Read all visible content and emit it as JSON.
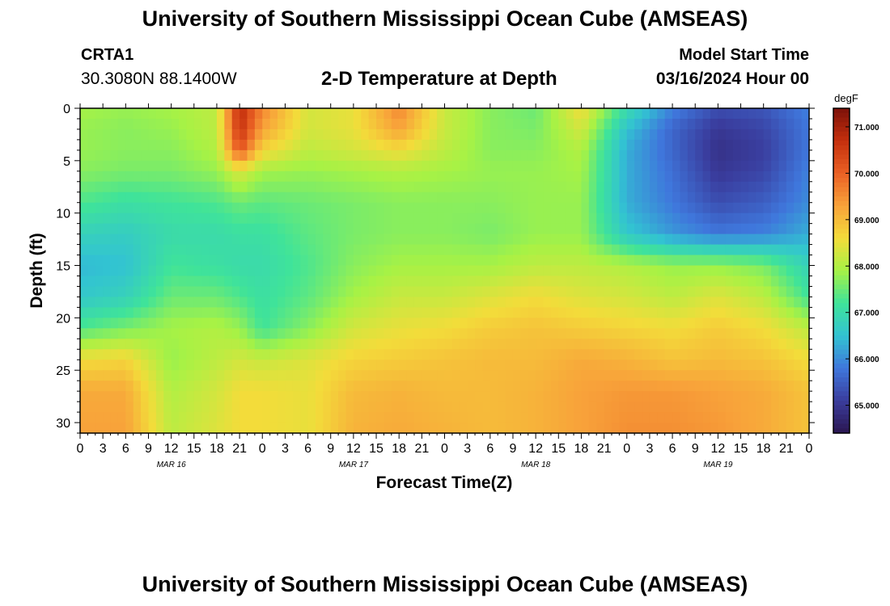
{
  "header": {
    "title": "University of Southern Mississippi Ocean Cube (AMSEAS)",
    "station_id": "CRTA1",
    "station_coords": "30.3080N  88.1400W",
    "plot_title": "2-D Temperature at Depth",
    "start_label": "Model Start Time",
    "start_value": "03/16/2024 Hour 00"
  },
  "footer": {
    "title": "University of Southern Mississippi Ocean Cube (AMSEAS)"
  },
  "chart_data": {
    "type": "heatmap",
    "xlabel": "Forecast Time(Z)",
    "ylabel": "Depth (ft)",
    "colorbar_label": "degF",
    "x_tick_labels": [
      "0",
      "3",
      "6",
      "9",
      "12",
      "15",
      "18",
      "21",
      "0",
      "3",
      "6",
      "9",
      "12",
      "15",
      "18",
      "21",
      "0",
      "3",
      "6",
      "9",
      "12",
      "15",
      "18",
      "21",
      "0",
      "3",
      "6",
      "9",
      "12",
      "15",
      "18",
      "21",
      "0"
    ],
    "date_labels": [
      "MAR 16",
      "MAR 17",
      "MAR 18",
      "MAR 19"
    ],
    "y_tick_labels": [
      "0",
      "5",
      "10",
      "15",
      "20",
      "25",
      "30"
    ],
    "colorbar_tick_labels": [
      "71.000",
      "70.000",
      "69.000",
      "68.000",
      "67.000",
      "66.000",
      "65.000"
    ],
    "x_range_hours": [
      0,
      96
    ],
    "y_range_ft": [
      0,
      31
    ],
    "color_range_degF": [
      64.4,
      71.4
    ],
    "colormap": [
      "#2b1650",
      "#3a3d9e",
      "#3f77dc",
      "#32c3d2",
      "#3fe39a",
      "#a7f245",
      "#f3dc3a",
      "#f8a23a",
      "#ea6024",
      "#c42f0d",
      "#7c1109"
    ],
    "depths_ft": [
      0,
      2,
      4,
      6,
      9,
      12,
      15,
      18,
      21,
      24,
      27,
      31
    ],
    "times_hours": [
      0,
      6,
      12,
      18,
      21,
      24,
      30,
      36,
      42,
      48,
      54,
      60,
      66,
      72,
      78,
      84,
      90,
      96
    ],
    "temperature_degF": [
      [
        67.9,
        67.8,
        67.9,
        68.1,
        70.8,
        69.6,
        68.3,
        68.5,
        69.6,
        68.2,
        67.7,
        67.5,
        68.6,
        67.0,
        65.9,
        65.3,
        65.4,
        65.9
      ],
      [
        67.8,
        67.7,
        67.8,
        68.1,
        70.7,
        69.3,
        68.3,
        68.5,
        69.3,
        68.2,
        67.7,
        67.6,
        68.3,
        66.5,
        65.6,
        65.0,
        65.2,
        65.8
      ],
      [
        67.8,
        67.7,
        67.7,
        68.0,
        70.2,
        68.7,
        68.1,
        68.3,
        68.6,
        68.1,
        67.7,
        67.7,
        68.0,
        66.3,
        65.6,
        64.9,
        65.1,
        65.8
      ],
      [
        67.7,
        67.6,
        67.6,
        67.8,
        68.4,
        67.9,
        67.8,
        67.9,
        68.0,
        67.9,
        67.8,
        67.8,
        67.9,
        66.3,
        65.7,
        65.0,
        65.2,
        65.9
      ],
      [
        67.3,
        67.1,
        67.2,
        67.3,
        67.5,
        67.4,
        67.5,
        67.6,
        67.7,
        67.7,
        67.7,
        67.8,
        67.8,
        66.3,
        65.8,
        65.3,
        65.5,
        66.0
      ],
      [
        66.8,
        66.7,
        67.0,
        67.0,
        67.1,
        67.1,
        67.4,
        67.6,
        67.7,
        67.7,
        67.6,
        67.8,
        67.8,
        66.6,
        66.1,
        65.8,
        65.9,
        66.3
      ],
      [
        66.4,
        66.5,
        67.2,
        67.1,
        67.0,
        67.0,
        67.3,
        67.7,
        67.9,
        67.9,
        67.9,
        68.1,
        68.1,
        68.0,
        67.8,
        67.8,
        67.6,
        66.8
      ],
      [
        66.6,
        66.8,
        67.5,
        67.5,
        67.3,
        67.1,
        67.4,
        67.9,
        68.2,
        68.2,
        68.4,
        68.6,
        68.4,
        68.3,
        68.1,
        68.4,
        68.1,
        67.2
      ],
      [
        67.3,
        67.6,
        67.9,
        68.0,
        67.8,
        67.2,
        67.7,
        68.3,
        68.5,
        68.6,
        68.8,
        68.9,
        68.8,
        68.7,
        68.6,
        68.8,
        68.6,
        68.1
      ],
      [
        68.6,
        68.7,
        67.8,
        68.1,
        68.3,
        68.2,
        68.4,
        68.7,
        68.8,
        68.9,
        69.0,
        69.0,
        69.2,
        69.1,
        68.9,
        69.0,
        68.9,
        68.6
      ],
      [
        69.2,
        69.2,
        68.0,
        68.3,
        68.6,
        68.6,
        68.5,
        69.0,
        69.1,
        69.0,
        69.0,
        69.1,
        69.3,
        69.4,
        69.4,
        69.3,
        69.2,
        68.9
      ],
      [
        69.3,
        69.3,
        68.1,
        68.4,
        68.6,
        68.6,
        68.5,
        69.1,
        69.2,
        69.1,
        69.0,
        69.1,
        69.3,
        69.5,
        69.5,
        69.4,
        69.2,
        68.9
      ]
    ]
  }
}
